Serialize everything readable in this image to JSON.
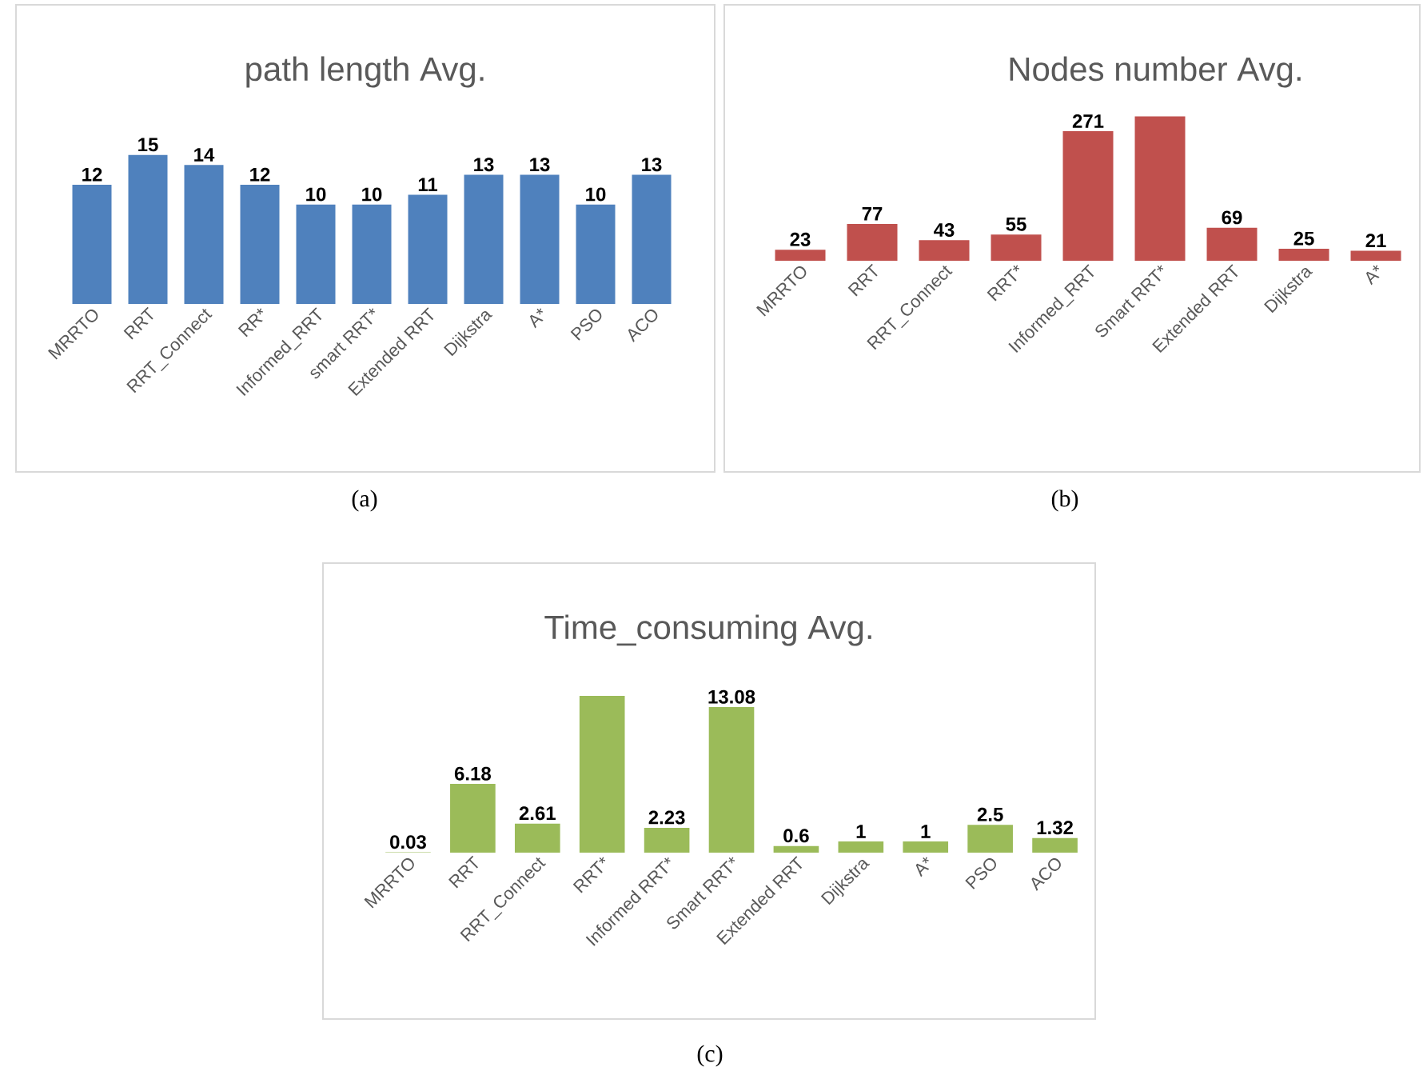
{
  "chart_data": [
    {
      "type": "bar",
      "title": "path length Avg.",
      "categories": [
        "MRRTO",
        "RRT",
        "RRT_Connect",
        "RR*",
        "Informed_RRT",
        "smart RRT*",
        "Extended RRT",
        "Dijkstra",
        "A*",
        "PSO",
        "ACO"
      ],
      "values": [
        12,
        15,
        14,
        12,
        10,
        10,
        11,
        13,
        13,
        10,
        13
      ],
      "color": "#4f81bd",
      "data_labels": true,
      "annotations": [
        "(a)"
      ]
    },
    {
      "type": "bar",
      "title": "Nodes number Avg.",
      "categories": [
        "MRRTO",
        "RRT",
        "RRT_Connect",
        "RRT*",
        "Informed_RRT",
        "Smart RRT*",
        "Extended RRT",
        "Dijkstra",
        "A*"
      ],
      "values": [
        23,
        77,
        43,
        55,
        271,
        302,
        69,
        25,
        21
      ],
      "value_labels": [
        "23",
        "77",
        "43",
        "55",
        "271",
        null,
        "69",
        "25",
        "21"
      ],
      "color": "#c0504d",
      "annotations": [
        "(b)"
      ]
    },
    {
      "type": "bar",
      "title": "Time_consuming Avg.",
      "categories": [
        "MRRTO",
        "RRT",
        "RRT_Connect",
        "RRT*",
        "Informed RRT*",
        "Smart RRT*",
        "Extended RRT",
        "Dijkstra",
        "A*",
        "PSO",
        "ACO"
      ],
      "values": [
        0.03,
        6.18,
        2.61,
        14.1,
        2.23,
        13.08,
        0.6,
        1,
        1,
        2.5,
        1.32
      ],
      "value_labels": [
        "0.03",
        "6.18",
        "2.61",
        null,
        "2.23",
        "13.08",
        "0.6",
        "1",
        "1",
        "2.5",
        "1.32"
      ],
      "color": "#9bbb59",
      "annotations": [
        "(c)"
      ]
    }
  ]
}
